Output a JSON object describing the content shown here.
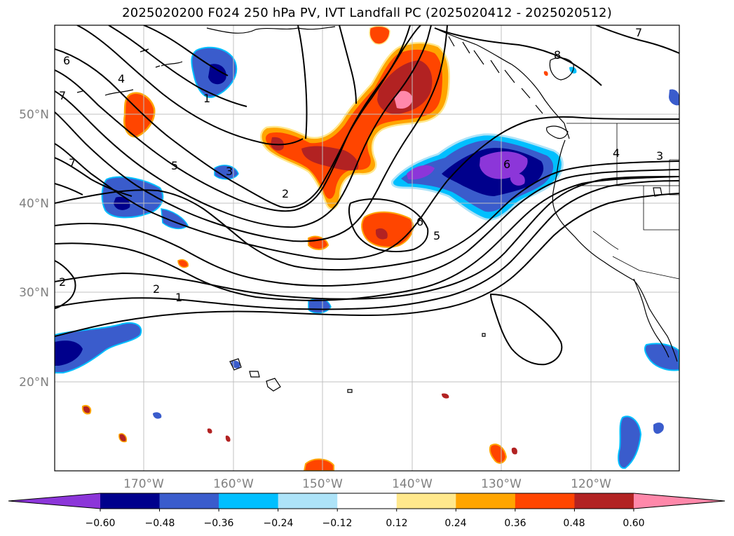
{
  "title": "2025020200 F024 250 hPa PV, IVT Landfall PC (2025020412 - 2025020512)",
  "axes": {
    "lat_labels": [
      "50°N",
      "40°N",
      "30°N",
      "20°N"
    ],
    "lon_labels": [
      "170°W",
      "160°W",
      "150°W",
      "140°W",
      "130°W",
      "120°W"
    ]
  },
  "colorbar": {
    "colors": [
      "#8c36d9",
      "#00008c",
      "#3a5ccc",
      "#00bfff",
      "#ade3f8",
      "#ffffff",
      "#ffe88c",
      "#ffa500",
      "#ff4500",
      "#b22222",
      "#ff88aa"
    ],
    "tick_labels": [
      "−0.60",
      "−0.48",
      "−0.36",
      "−0.24",
      "−0.12",
      "0.12",
      "0.24",
      "0.36",
      "0.48",
      "0.60"
    ]
  },
  "contour_labels": [
    "6",
    "4",
    "7",
    "1",
    "5",
    "3",
    "2",
    "7",
    "2",
    "2",
    "1",
    "6",
    "5",
    "6",
    "4",
    "3",
    "7",
    "8"
  ]
}
